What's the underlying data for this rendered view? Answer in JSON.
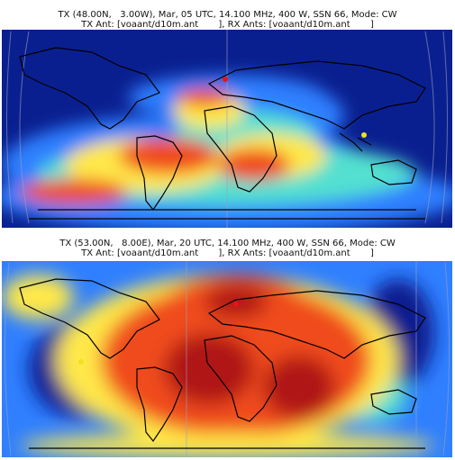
{
  "panels": [
    {
      "title_line1": "TX (48.00N,   3.00W), Mar, 05 UTC, 14.100 MHz, 400 W, SSN 66, Mode: CW",
      "title_line2": "TX Ant: [voaant/d10m.ant       ], RX Ants: [voaant/d10m.ant       ]"
    },
    {
      "title_line1": "TX (53.00N,   8.00E), Mar, 20 UTC, 14.100 MHz, 400 W, SSN 66, Mode: CW",
      "title_line2": "TX Ant: [voaant/d10m.ant       ], RX Ants: [voaant/d10m.ant       ]"
    }
  ],
  "colors": {
    "low": "#0a1f8f",
    "mid_low": "#2f7fff",
    "mid": "#52e0d0",
    "mid_high": "#ffe84a",
    "high": "#f04c1a",
    "max": "#b01414",
    "coast": "#000000",
    "tx_marker": "#e8141a",
    "rx_marker": "#f0e020"
  }
}
